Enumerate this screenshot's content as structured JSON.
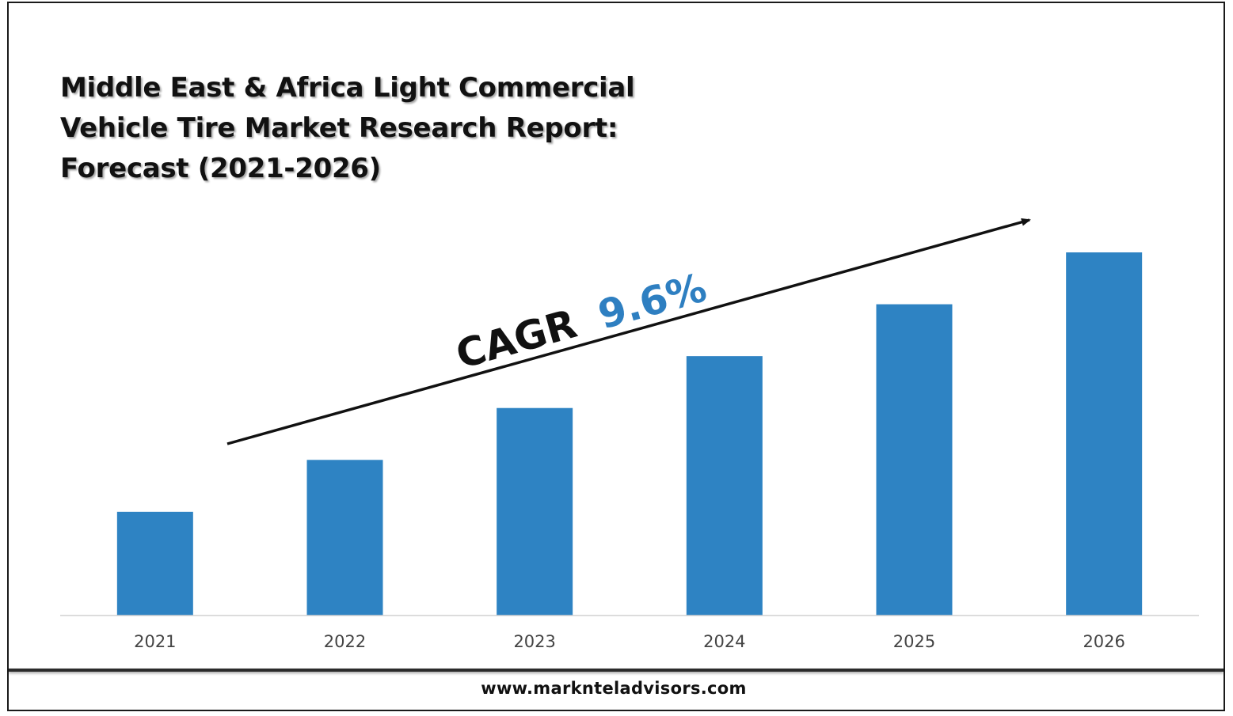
{
  "title_lines": [
    "Middle East & Africa Light Commercial",
    "Vehicle Tire Market Research Report:",
    "Forecast (2021-2026)"
  ],
  "footer": {
    "website": "www.marknteladvisors.com"
  },
  "annotation": {
    "label": "CAGR",
    "value": "9.6%",
    "value_color": "#2e7fc1"
  },
  "chart_data": {
    "type": "bar",
    "categories": [
      "2021",
      "2022",
      "2023",
      "2024",
      "2025",
      "2026"
    ],
    "values": [
      1.0,
      1.5,
      2.0,
      2.5,
      3.0,
      3.5
    ],
    "ylim": [
      0,
      3.5
    ],
    "bar_color": "#2e83c3",
    "axis_color": "#d0d0d0",
    "grid": false,
    "legend": "none"
  }
}
